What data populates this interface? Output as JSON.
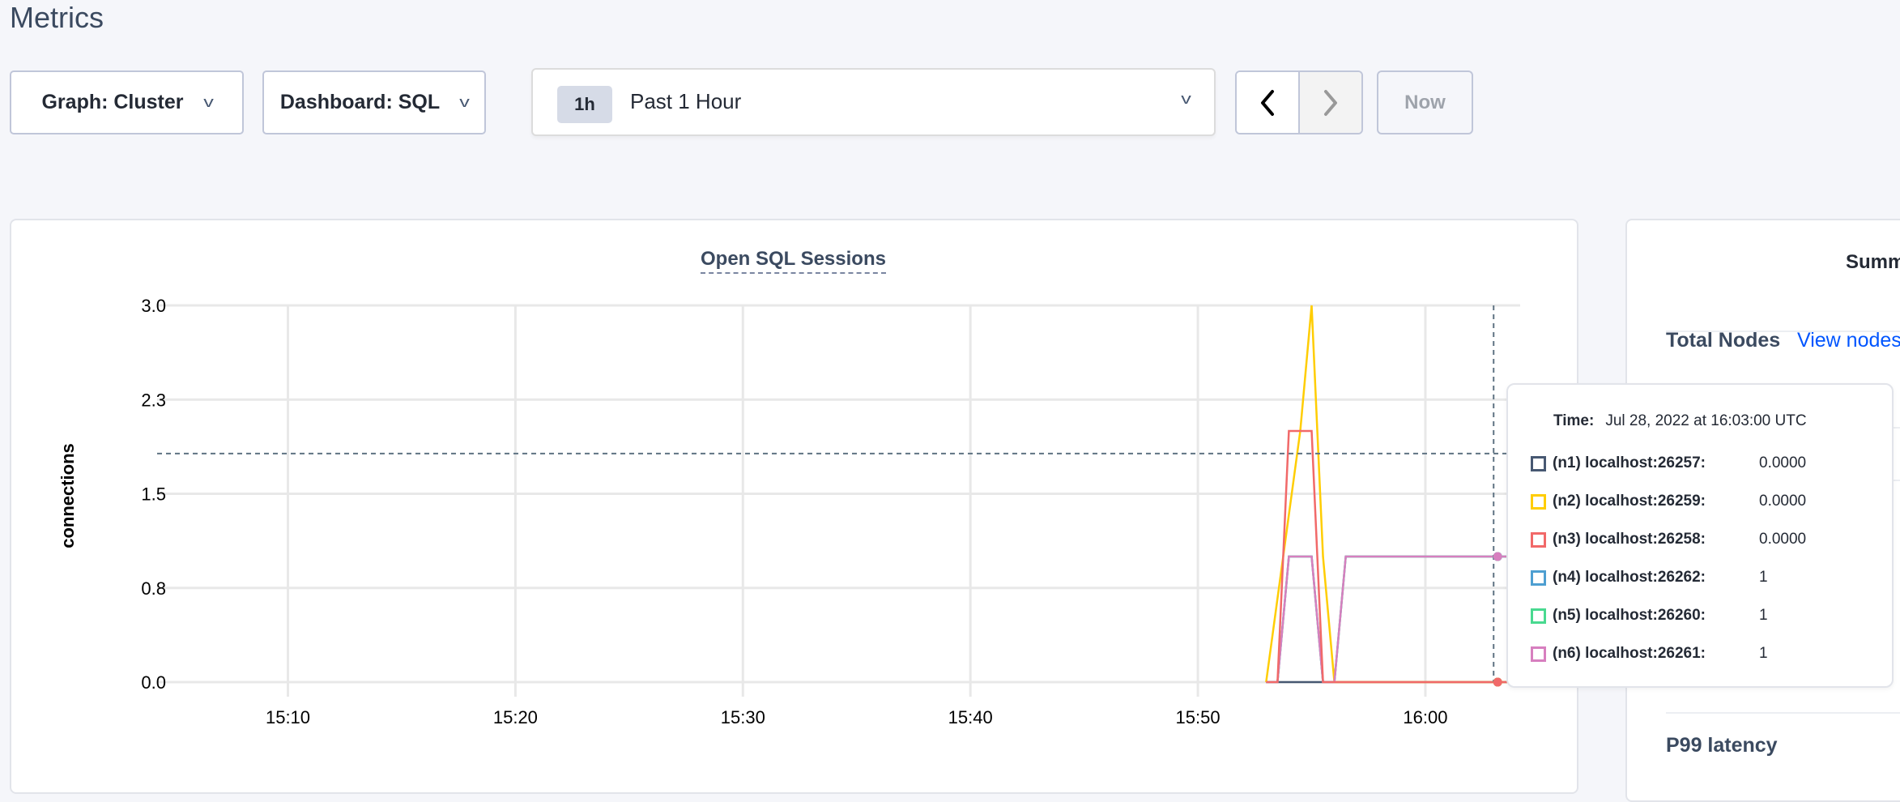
{
  "page": {
    "title": "Metrics"
  },
  "toolbar": {
    "graph_dropdown": "Graph: Cluster",
    "dashboard_dropdown": "Dashboard: SQL",
    "time_range": {
      "badge": "1h",
      "label": "Past 1 Hour"
    },
    "now_label": "Now"
  },
  "icons": {
    "dropdown": "chevron-down-icon",
    "prev": "chevron-left-icon",
    "next": "chevron-right-icon"
  },
  "chart_data": {
    "type": "line",
    "title": "Open SQL Sessions",
    "ylabel": "connections",
    "xlabel": "",
    "xlim": [
      "15:04:15",
      "16:04:10"
    ],
    "ylim": [
      0,
      3
    ],
    "x_ticks": [
      "15:10",
      "15:20",
      "15:30",
      "15:40",
      "15:50",
      "16:00"
    ],
    "y_ticks": [
      {
        "value": 0,
        "label": "0.0"
      },
      {
        "value": 0.75,
        "label": "0.8"
      },
      {
        "value": 1.5,
        "label": "1.5"
      },
      {
        "value": 2.25,
        "label": "2.3"
      },
      {
        "value": 3,
        "label": "3.0"
      }
    ],
    "grid": true,
    "series": [
      {
        "name": "(n1) localhost:26257",
        "color": "#475872",
        "points": [
          [
            "15:53:00",
            0
          ],
          [
            "16:04:00",
            0
          ]
        ]
      },
      {
        "name": "(n4) localhost:26262",
        "color": "#4e9fd1",
        "points": [
          [
            "15:53:00",
            0
          ],
          [
            "15:53:30",
            0
          ],
          [
            "15:54:00",
            1
          ],
          [
            "15:55:00",
            1
          ],
          [
            "15:55:30",
            0
          ],
          [
            "15:56:00",
            0
          ],
          [
            "15:56:30",
            1
          ],
          [
            "16:04:00",
            1
          ]
        ]
      },
      {
        "name": "(n5) localhost:26260",
        "color": "#49d990",
        "points": [
          [
            "15:53:00",
            0
          ],
          [
            "15:53:30",
            0
          ],
          [
            "15:54:00",
            1
          ],
          [
            "15:55:00",
            1
          ],
          [
            "15:55:30",
            0
          ],
          [
            "15:56:00",
            0
          ],
          [
            "15:56:30",
            1
          ],
          [
            "16:04:00",
            1
          ]
        ]
      },
      {
        "name": "(n2) localhost:26259",
        "color": "#ffcd02",
        "points": [
          [
            "15:53:00",
            0
          ],
          [
            "15:54:30",
            2
          ],
          [
            "15:55:00",
            3
          ],
          [
            "15:55:30",
            1
          ],
          [
            "15:56:00",
            0
          ],
          [
            "16:04:00",
            0
          ]
        ]
      },
      {
        "name": "(n6) localhost:26261",
        "color": "#d77fbf",
        "points": [
          [
            "15:53:00",
            0
          ],
          [
            "15:53:30",
            0
          ],
          [
            "15:54:00",
            1
          ],
          [
            "15:55:00",
            1
          ],
          [
            "15:55:30",
            0
          ],
          [
            "15:56:00",
            0
          ],
          [
            "15:56:30",
            1
          ],
          [
            "16:04:00",
            1
          ]
        ]
      },
      {
        "name": "(n3) localhost:26258",
        "color": "#f16969",
        "points": [
          [
            "15:53:00",
            0
          ],
          [
            "15:53:30",
            0
          ],
          [
            "15:54:00",
            2
          ],
          [
            "15:55:00",
            2
          ],
          [
            "15:55:30",
            0
          ],
          [
            "16:04:00",
            0
          ]
        ]
      }
    ],
    "hover": {
      "time": "16:03:00",
      "y": 1.82
    }
  },
  "tooltip": {
    "time_label": "Time:",
    "time_value": "Jul 28, 2022 at 16:03:00 UTC",
    "rows": [
      {
        "name": "(n1) localhost:26257:",
        "value": "0.0000",
        "color": "#475872"
      },
      {
        "name": "(n2) localhost:26259:",
        "value": "0.0000",
        "color": "#ffcd02"
      },
      {
        "name": "(n3) localhost:26258:",
        "value": "0.0000",
        "color": "#f16969"
      },
      {
        "name": "(n4) localhost:26262:",
        "value": "1",
        "color": "#4e9fd1"
      },
      {
        "name": "(n5) localhost:26260:",
        "value": "1",
        "color": "#49d990"
      },
      {
        "name": "(n6) localhost:26261:",
        "value": "1",
        "color": "#d77fbf"
      }
    ]
  },
  "summary": {
    "title": "Summ",
    "total_nodes_label": "Total Nodes",
    "view_nodes_link": "View nodes",
    "p99_label": "P99 latency"
  }
}
